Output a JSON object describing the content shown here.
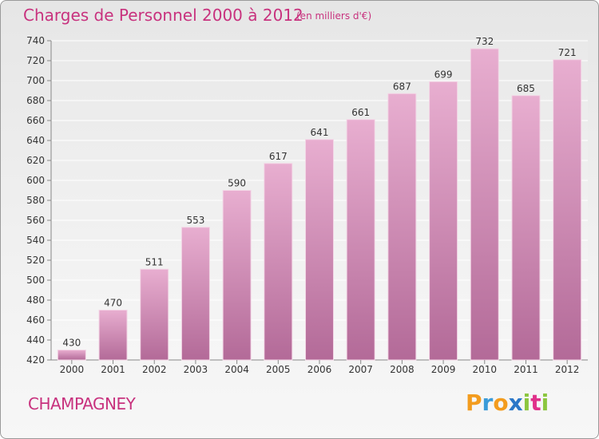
{
  "header": {
    "title": "Charges de Personnel 2000 à 2012",
    "subtitle": "(en milliers d'€)"
  },
  "footer": {
    "commune": "CHAMPAGNEY",
    "logo_text": "Proxiti"
  },
  "colors": {
    "accent": "#c8327e",
    "bar_light": "#e8aed0",
    "bar_dark": "#b36a98"
  },
  "chart_data": {
    "type": "bar",
    "categories": [
      "2000",
      "2001",
      "2002",
      "2003",
      "2004",
      "2005",
      "2006",
      "2007",
      "2008",
      "2009",
      "2010",
      "2011",
      "2012"
    ],
    "values": [
      430,
      470,
      511,
      553,
      590,
      617,
      641,
      661,
      687,
      699,
      732,
      685,
      721
    ],
    "ylim": [
      420,
      740
    ],
    "yticks": [
      420,
      440,
      460,
      480,
      500,
      520,
      540,
      560,
      580,
      600,
      620,
      640,
      660,
      680,
      700,
      720,
      740
    ],
    "grid": true
  }
}
